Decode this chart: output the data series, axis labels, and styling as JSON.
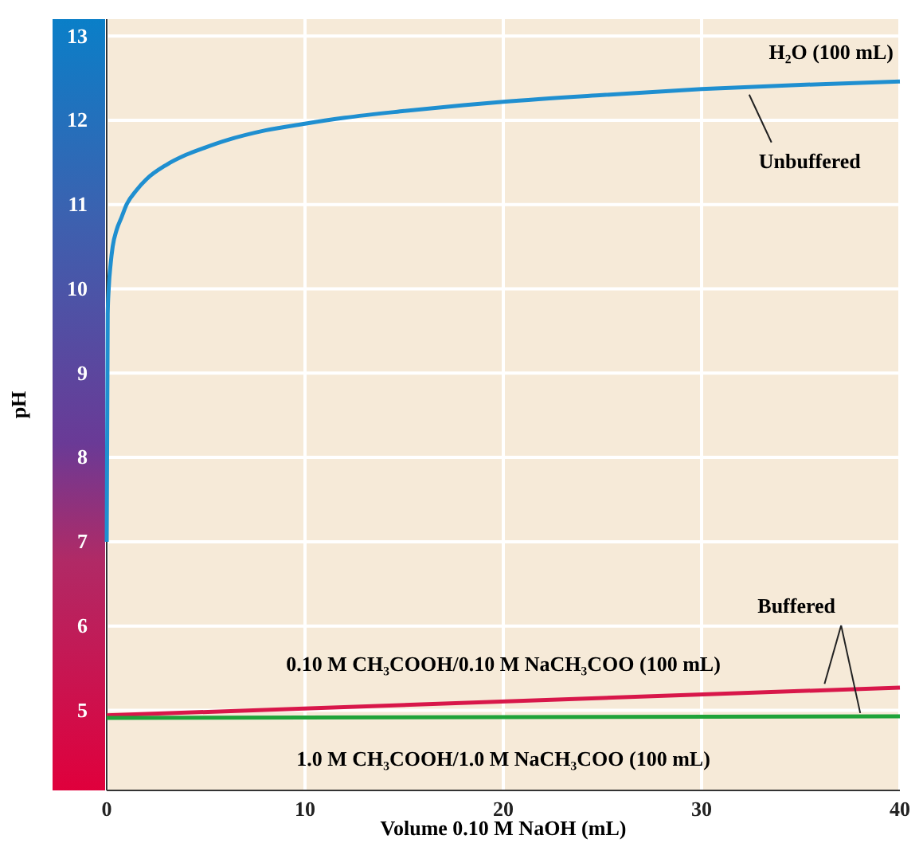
{
  "chart_data": {
    "type": "line",
    "xlabel": "Volume 0.10 M NaOH (mL)",
    "ylabel": "pH",
    "xlim": [
      0,
      40
    ],
    "xticks": [
      0,
      10,
      20,
      30,
      40
    ],
    "ylim": [
      4.05,
      13.2
    ],
    "yticks": [
      5,
      6,
      7,
      8,
      9,
      10,
      11,
      12,
      13
    ],
    "grid": true,
    "line_style": "solid",
    "series": [
      {
        "name": "H₂O (100 mL)",
        "color": "#1f8fd0",
        "x": [
          0,
          0.05,
          0.1,
          0.2,
          0.3,
          0.5,
          0.75,
          1,
          1.5,
          2,
          3,
          4,
          5,
          6,
          8,
          10,
          12,
          15,
          18,
          20,
          25,
          30,
          35,
          40
        ],
        "values": [
          7.0,
          9.7,
          10.0,
          10.3,
          10.5,
          10.7,
          10.85,
          11.0,
          11.17,
          11.3,
          11.47,
          11.59,
          11.68,
          11.76,
          11.88,
          11.96,
          12.03,
          12.11,
          12.18,
          12.22,
          12.3,
          12.37,
          12.42,
          12.46
        ]
      },
      {
        "name": "0.10 M CH₃COOH/0.10 M NaCH₃COO (100 mL)",
        "color": "#d8174a",
        "x": [
          0,
          40
        ],
        "values": [
          4.94,
          5.27
        ]
      },
      {
        "name": "1.0 M CH₃COOH/1.0 M NaCH₃COO (100 mL)",
        "color": "#1fa33a",
        "x": [
          0,
          40
        ],
        "values": [
          4.91,
          4.93
        ]
      }
    ],
    "annotations": [
      {
        "text": "Unbuffered",
        "x": 32.4,
        "y": 12.38
      },
      {
        "text": "Buffered",
        "x": 38,
        "y": 4.93
      }
    ]
  }
}
